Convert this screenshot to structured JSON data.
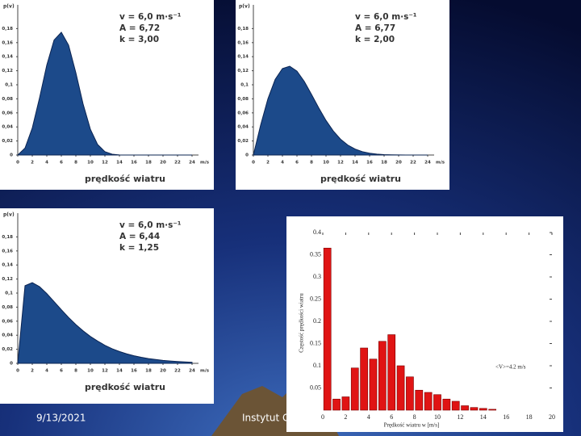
{
  "footer": {
    "date": "9/13/2021",
    "text": "Instytut Geofizyki"
  },
  "chart_data": [
    {
      "type": "area",
      "y_label": "p(v)",
      "x_label": "prędkość wiatru",
      "x_unit": "m/s",
      "annotations": [
        "v = 6,0 m·s⁻¹",
        "A = 6,72",
        "k = 3,00"
      ],
      "color": "#1c4a8a",
      "x": [
        0,
        1,
        2,
        3,
        4,
        5,
        6,
        7,
        8,
        9,
        10,
        11,
        12,
        13,
        14,
        15,
        16,
        17,
        18,
        19,
        20,
        21,
        22,
        23,
        24
      ],
      "y": [
        0,
        0.0099,
        0.0385,
        0.0814,
        0.1281,
        0.1637,
        0.1747,
        0.1564,
        0.1171,
        0.0725,
        0.0367,
        0.0149,
        0.0048,
        0.0012,
        0.0002,
        0,
        0,
        0,
        0,
        0,
        0,
        0,
        0,
        0,
        0
      ],
      "xlim": [
        0,
        24
      ],
      "ylim": [
        0,
        0.2
      ],
      "xticks": [
        0,
        2,
        4,
        6,
        8,
        10,
        12,
        14,
        16,
        18,
        20,
        22,
        24
      ],
      "yticks": [
        0,
        {
          "value": 0.02,
          "label": "0,02"
        },
        {
          "value": 0.04,
          "label": "0,04"
        },
        {
          "value": 0.06,
          "label": "0,06"
        },
        {
          "value": 0.08,
          "label": "0,08"
        },
        {
          "value": 0.1,
          "label": "0,1"
        },
        {
          "value": 0.12,
          "label": "0,12"
        },
        {
          "value": 0.14,
          "label": "0,14"
        },
        {
          "value": 0.16,
          "label": "0,16"
        },
        {
          "value": 0.18,
          "label": "0,18"
        }
      ]
    },
    {
      "type": "area",
      "y_label": "p(v)",
      "x_label": "prędkość wiatru",
      "x_unit": "m/s",
      "annotations": [
        "v = 6,0 m·s⁻¹",
        "A = 6,77",
        "k = 2,00"
      ],
      "color": "#1c4a8a",
      "x": [
        0,
        1,
        2,
        3,
        4,
        5,
        6,
        7,
        8,
        9,
        10,
        11,
        12,
        13,
        14,
        15,
        16,
        17,
        18,
        19,
        20,
        21,
        22,
        23,
        24
      ],
      "y": [
        0,
        0.0427,
        0.08,
        0.1076,
        0.1231,
        0.1264,
        0.1194,
        0.1049,
        0.0864,
        0.0671,
        0.0492,
        0.0343,
        0.0226,
        0.0142,
        0.0085,
        0.0048,
        0.0026,
        0.0013,
        0.0006,
        0.0003,
        0.0001,
        0,
        0,
        0,
        0
      ],
      "xlim": [
        0,
        24
      ],
      "ylim": [
        0,
        0.2
      ],
      "xticks": [
        0,
        2,
        4,
        6,
        8,
        10,
        12,
        14,
        16,
        18,
        20,
        22,
        24
      ],
      "yticks": [
        0,
        {
          "value": 0.02,
          "label": "0,02"
        },
        {
          "value": 0.04,
          "label": "0,04"
        },
        {
          "value": 0.06,
          "label": "0,06"
        },
        {
          "value": 0.08,
          "label": "0,08"
        },
        {
          "value": 0.1,
          "label": "0,1"
        },
        {
          "value": 0.12,
          "label": "0,12"
        },
        {
          "value": 0.14,
          "label": "0,14"
        },
        {
          "value": 0.16,
          "label": "0,16"
        },
        {
          "value": 0.18,
          "label": "0,18"
        }
      ]
    },
    {
      "type": "area",
      "y_label": "p(v)",
      "x_label": "prędkość wiatru",
      "x_unit": "m/s",
      "annotations": [
        "v = 6,0 m·s⁻¹",
        "A = 6,44",
        "k = 1,25"
      ],
      "color": "#1c4a8a",
      "x": [
        0,
        1,
        2,
        3,
        4,
        5,
        6,
        7,
        8,
        9,
        10,
        11,
        12,
        13,
        14,
        15,
        16,
        17,
        18,
        19,
        20,
        21,
        22,
        23,
        24
      ],
      "y": [
        0,
        0.1105,
        0.1149,
        0.1091,
        0.0993,
        0.0879,
        0.0764,
        0.0653,
        0.0552,
        0.0462,
        0.0383,
        0.0317,
        0.0257,
        0.0208,
        0.0168,
        0.0135,
        0.0108,
        0.0086,
        0.0068,
        0.0054,
        0.0042,
        0.0033,
        0.0026,
        0.002,
        0.0015
      ],
      "xlim": [
        0,
        24
      ],
      "ylim": [
        0,
        0.2
      ],
      "xticks": [
        0,
        2,
        4,
        6,
        8,
        10,
        12,
        14,
        16,
        18,
        20,
        22,
        24
      ],
      "yticks": [
        0,
        {
          "value": 0.02,
          "label": "0,02"
        },
        {
          "value": 0.04,
          "label": "0,04"
        },
        {
          "value": 0.06,
          "label": "0,06"
        },
        {
          "value": 0.08,
          "label": "0,08"
        },
        {
          "value": 0.1,
          "label": "0,1"
        },
        {
          "value": 0.12,
          "label": "0,12"
        },
        {
          "value": 0.14,
          "label": "0,14"
        },
        {
          "value": 0.16,
          "label": "0,16"
        },
        {
          "value": 0.18,
          "label": "0,18"
        }
      ]
    },
    {
      "type": "histogram",
      "y_label": "Częstość prędkości wiatru",
      "x_label": "Prędkość wiatru w [m/s]",
      "annotation": "<V>=4.2 m/s",
      "color": "#e01414",
      "bins": [
        0,
        0.8,
        1.6,
        2.4,
        3.2,
        4,
        4.8,
        5.6,
        6.4,
        7.2,
        8,
        8.8,
        9.6,
        10.4,
        11.2,
        12,
        12.8,
        13.6,
        14.4,
        15.2
      ],
      "values": [
        0.365,
        0.025,
        0.03,
        0.095,
        0.14,
        0.115,
        0.155,
        0.17,
        0.1,
        0.075,
        0.045,
        0.04,
        0.035,
        0.025,
        0.02,
        0.01,
        0.006,
        0.004,
        0.002
      ],
      "xlim": [
        0,
        20
      ],
      "ylim": [
        0,
        0.4
      ],
      "xticks": [
        0,
        2,
        4,
        6,
        8,
        10,
        12,
        14,
        16,
        18,
        20
      ],
      "yticks": [
        0.05,
        0.1,
        0.15,
        0.2,
        0.25,
        0.3,
        0.35,
        0.4
      ]
    }
  ]
}
